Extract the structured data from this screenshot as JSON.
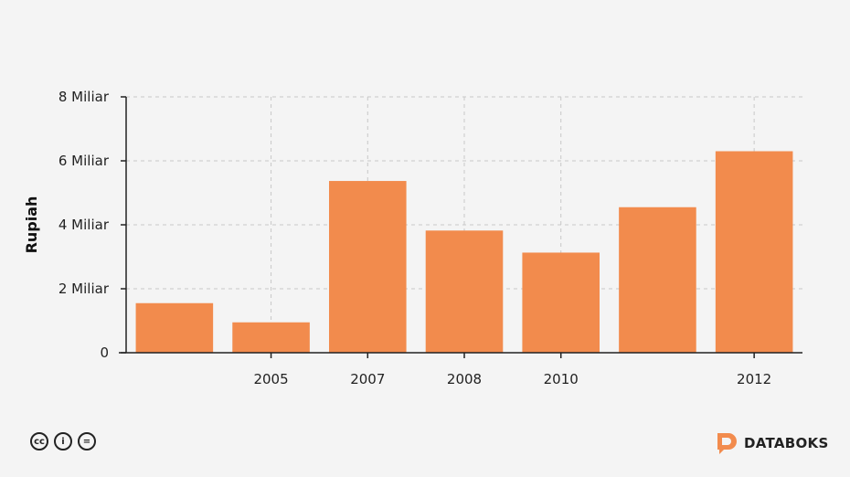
{
  "chart_data": {
    "type": "bar",
    "categories": [
      "",
      "2005",
      "2007",
      "2008",
      "2010",
      "",
      "2012"
    ],
    "values": [
      1.55,
      0.95,
      5.37,
      3.82,
      3.13,
      4.55,
      6.3
    ],
    "ylabel": "Rupiah",
    "ylim": [
      0,
      8
    ],
    "yticks": [
      0,
      2,
      4,
      6,
      8
    ],
    "ytick_labels": [
      "0",
      "2 Miliar",
      "4 Miliar",
      "6 Miliar",
      "8 Miliar"
    ],
    "grid": true,
    "bar_color": "#f28b4d"
  },
  "footer": {
    "license_icons": [
      "cc-icon",
      "by-icon",
      "nd-icon"
    ],
    "license_glyphs": [
      "cc",
      "i",
      "="
    ],
    "brand": "DATABOKS",
    "brand_color": "#f28b4d"
  }
}
